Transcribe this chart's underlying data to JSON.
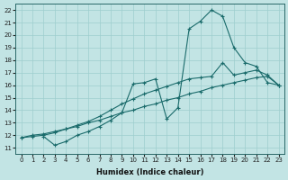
{
  "xlabel": "Humidex (Indice chaleur)",
  "ylabel": "",
  "background_color": "#c2e4e4",
  "grid_color": "#9ecece",
  "line_color": "#1a6b6b",
  "xlim": [
    -0.5,
    23.5
  ],
  "ylim": [
    10.5,
    22.5
  ],
  "xticks": [
    0,
    1,
    2,
    3,
    4,
    5,
    6,
    7,
    8,
    9,
    10,
    11,
    12,
    13,
    14,
    15,
    16,
    17,
    18,
    19,
    20,
    21,
    22,
    23
  ],
  "yticks": [
    11,
    12,
    13,
    14,
    15,
    16,
    17,
    18,
    19,
    20,
    21,
    22
  ],
  "line1_x": [
    0,
    1,
    2,
    3,
    4,
    5,
    6,
    7,
    8,
    9,
    10,
    11,
    12,
    13,
    14,
    15,
    16,
    17,
    18,
    19,
    20,
    21,
    22,
    23
  ],
  "line1_y": [
    11.8,
    12.0,
    12.1,
    12.3,
    12.5,
    12.7,
    13.0,
    13.2,
    13.5,
    13.8,
    14.0,
    14.3,
    14.5,
    14.8,
    15.0,
    15.3,
    15.5,
    15.8,
    16.0,
    16.2,
    16.4,
    16.6,
    16.7,
    16.0
  ],
  "line2_x": [
    2,
    3,
    4,
    5,
    6,
    7,
    8,
    9,
    10,
    11,
    12,
    13,
    14,
    15,
    16,
    17,
    18,
    19,
    20,
    21,
    22,
    23
  ],
  "line2_y": [
    11.9,
    11.2,
    11.5,
    12.0,
    12.3,
    12.7,
    13.2,
    13.8,
    16.1,
    16.2,
    16.5,
    13.3,
    14.2,
    20.5,
    21.1,
    22.0,
    21.5,
    19.0,
    17.8,
    17.5,
    16.2,
    16.0
  ],
  "line3_x": [
    0,
    1,
    2,
    3,
    4,
    5,
    6,
    7,
    8,
    9,
    10,
    11,
    12,
    13,
    14,
    15,
    16,
    17,
    18,
    19,
    20,
    21,
    22,
    23
  ],
  "line3_y": [
    11.8,
    11.9,
    12.0,
    12.2,
    12.5,
    12.8,
    13.1,
    13.5,
    14.0,
    14.5,
    14.9,
    15.3,
    15.6,
    15.9,
    16.2,
    16.5,
    16.6,
    16.7,
    17.8,
    16.8,
    17.0,
    17.2,
    16.8,
    16.0
  ]
}
